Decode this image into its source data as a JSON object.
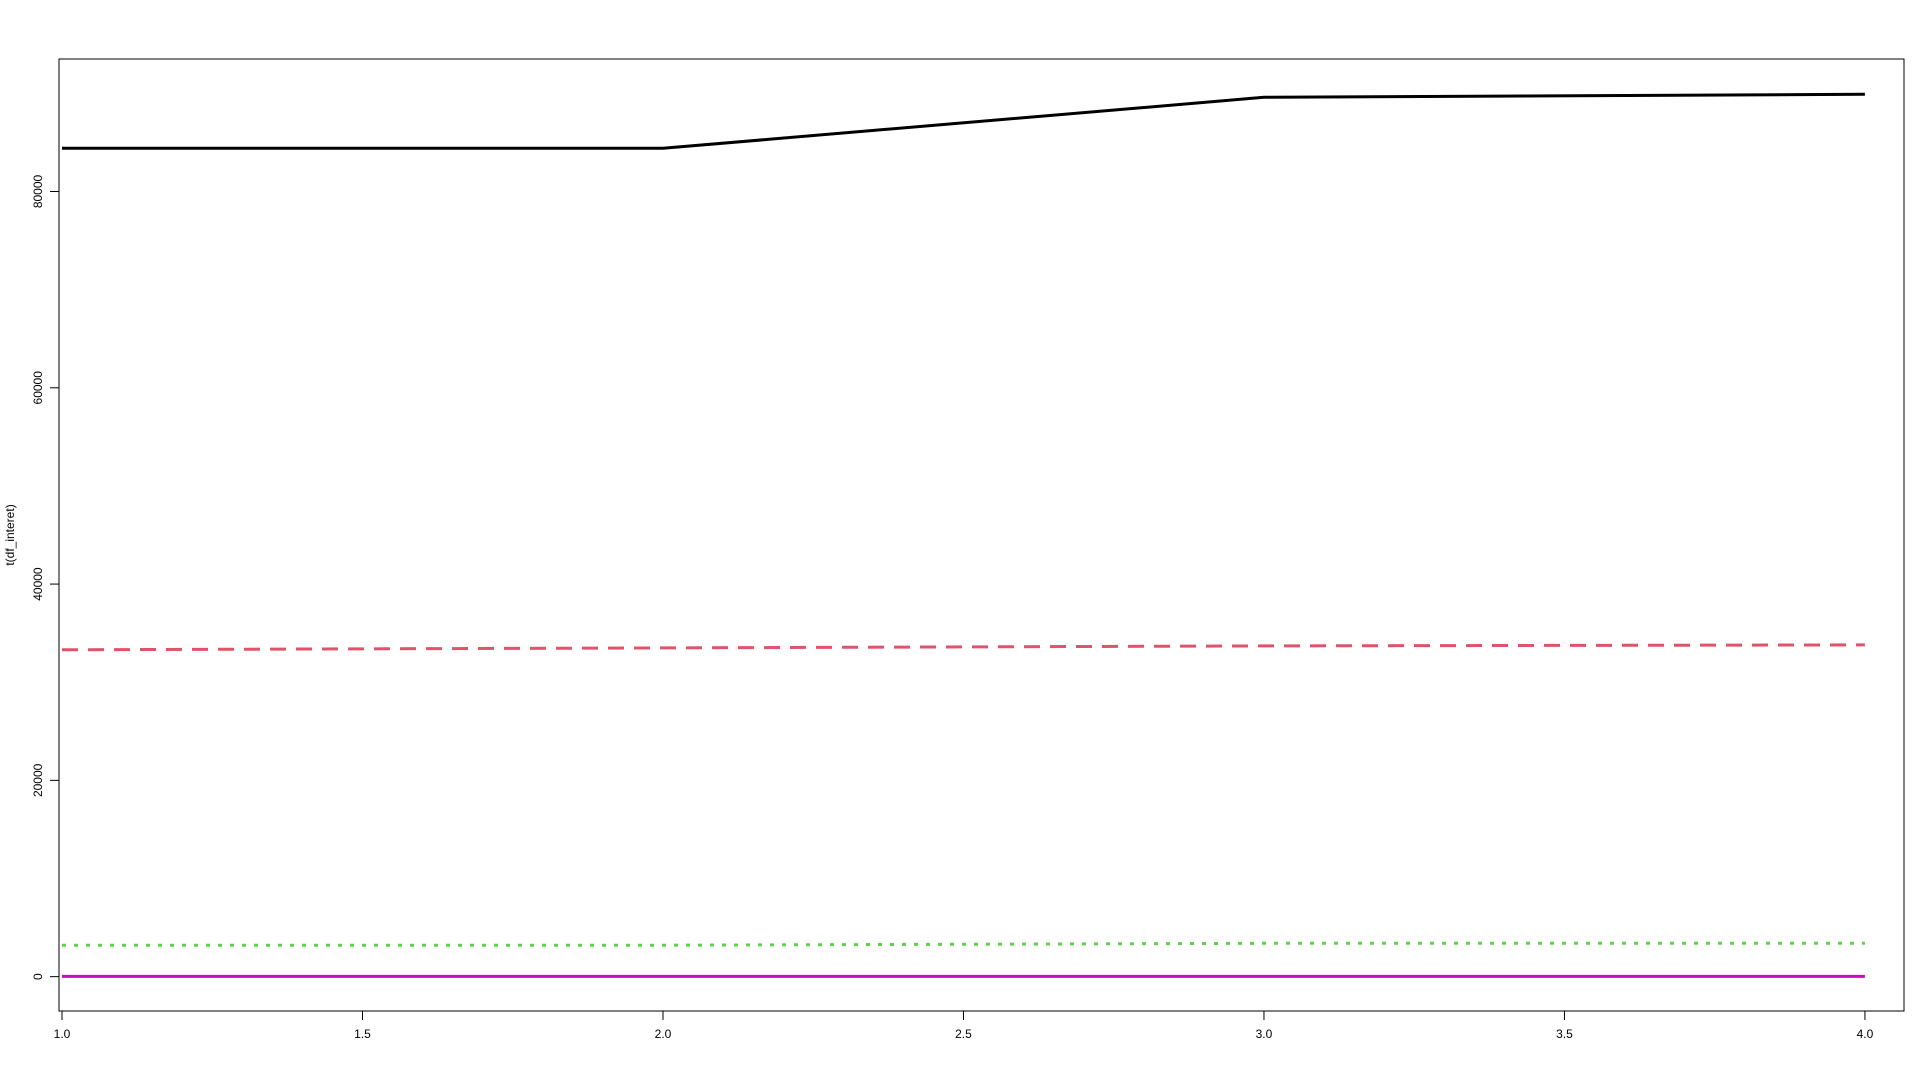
{
  "chart_data": {
    "type": "line",
    "title": "",
    "xlabel": "",
    "ylabel": "t(df_interet)",
    "xlim": [
      0.995,
      4.065
    ],
    "ylim": [
      -3500,
      93500
    ],
    "x": [
      1,
      2,
      3,
      4
    ],
    "x_ticks": [
      1.0,
      1.5,
      2.0,
      2.5,
      3.0,
      3.5,
      4.0
    ],
    "x_tick_labels": [
      "1.0",
      "1.5",
      "2.0",
      "2.5",
      "3.0",
      "3.5",
      "4.0"
    ],
    "y_ticks": [
      0,
      20000,
      40000,
      60000,
      80000
    ],
    "y_tick_labels": [
      "0",
      "20000",
      "40000",
      "60000",
      "80000"
    ],
    "grid": false,
    "legend": "none",
    "series": [
      {
        "values": [
          84400,
          84400,
          89600,
          89900
        ],
        "color": "#000000",
        "dash": "solid"
      },
      {
        "values": [
          33300,
          33500,
          33700,
          33800
        ],
        "color": "#DF536B",
        "dash": "dashed"
      },
      {
        "values": [
          3200,
          3200,
          3400,
          3400
        ],
        "color": "#61D04F",
        "dash": "dotted"
      },
      {
        "values": [
          30,
          30,
          30,
          30
        ],
        "color": "#CD0BBC",
        "dash": "solid"
      }
    ]
  }
}
